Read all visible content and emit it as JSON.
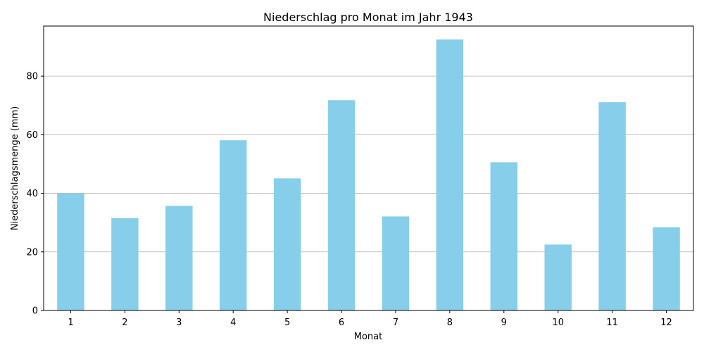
{
  "chart_data": {
    "type": "bar",
    "title": "Niederschlag pro Monat im Jahr 1943",
    "xlabel": "Monat",
    "ylabel": "Niederschlagsmenge (mm)",
    "categories": [
      "1",
      "2",
      "3",
      "4",
      "5",
      "6",
      "7",
      "8",
      "9",
      "10",
      "11",
      "12"
    ],
    "values": [
      40.0,
      31.5,
      35.7,
      58.1,
      45.1,
      71.8,
      32.1,
      92.5,
      50.6,
      22.5,
      71.1,
      28.4
    ],
    "ylim": [
      0,
      97.1
    ],
    "yticks": [
      0,
      20,
      40,
      60,
      80
    ],
    "grid": "y-axis",
    "bar_color": "#87ceeb",
    "grid_color": "#b0b0b0"
  }
}
